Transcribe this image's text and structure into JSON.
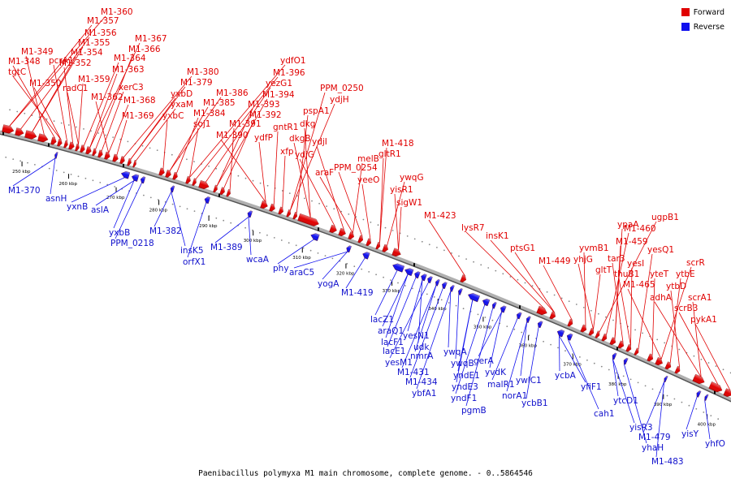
{
  "caption": "Paenibacillus polymyxa M1 main chromosome, complete genome. - 0..5864546",
  "legend": {
    "forward_label": "Forward",
    "reverse_label": "Reverse",
    "forward_color": "#e00000",
    "reverse_color": "#1010ee"
  },
  "ticks": [
    "250 kbp",
    "260 kbp",
    "270 kbp",
    "280 kbp",
    "290 kbp",
    "300 kbp",
    "310 kbp",
    "320 kbp",
    "330 kbp",
    "340 kbp",
    "350 kbp",
    "360 kbp",
    "370 kbp",
    "380 kbp",
    "390 kbp",
    "400 kbp"
  ],
  "forward_genes": [
    "M1-360",
    "M1-357",
    "M1-356",
    "M1-355",
    "M1-354",
    "M1-349",
    "M1-348",
    "tgtC",
    "M1-350",
    "pcrA1",
    "M1-352",
    "radC1",
    "M1-359",
    "M1-364",
    "M1-363",
    "M1-367",
    "M1-366",
    "xerC3",
    "M1-362",
    "M1-368",
    "M1-369",
    "M1-380",
    "M1-379",
    "yxbD",
    "yxaM",
    "yxbC",
    "M1-386",
    "M1-385",
    "M1-384",
    "soj1",
    "ydfO1",
    "M1-396",
    "yezG1",
    "M1-394",
    "M1-393",
    "M1-392",
    "M1-391",
    "M1-390",
    "ydfP",
    "gntR1",
    "xfp",
    "PPM_0250",
    "ydjH",
    "pspA1",
    "dkg",
    "dkgB",
    "ydjG",
    "ydjI",
    "araF",
    "melB",
    "PPM_0254",
    "yeeO",
    "M1-418",
    "gltR1",
    "ywqG",
    "yisR1",
    "sigW1",
    "M1-423",
    "lysR7",
    "insK1",
    "ptsG1",
    "M1-449",
    "yvmB1",
    "yhjG",
    "gltT",
    "ugpB1",
    "M1-460",
    "M1-459",
    "ypaA",
    "tar3",
    "yesI",
    "thuB1",
    "yesQ1",
    "yteT",
    "M1-465",
    "scrR",
    "ytbE",
    "ytbD",
    "adhA",
    "scrA1",
    "scrB3",
    "pykA1"
  ],
  "reverse_genes": [
    "M1-370",
    "asnH",
    "yxnB",
    "aslA",
    "yxbB",
    "PPM_0218",
    "M1-382",
    "insK5",
    "orfX1",
    "M1-389",
    "wcaA",
    "phy",
    "araC5",
    "yogA",
    "M1-419",
    "lacZ1",
    "araQ1",
    "lacF1",
    "lacE1",
    "yesN1",
    "udk",
    "yesM1",
    "nmrA",
    "M1-431",
    "M1-434",
    "ybfA1",
    "ywqA",
    "ywqB",
    "yndE1",
    "yndE3",
    "yndF1",
    "pgmB",
    "gerA",
    "yvdK",
    "malR1",
    "norA1",
    "ywlC1",
    "ycbB1",
    "ycbA",
    "yfiF1",
    "cah1",
    "ytcD1",
    "yisR3",
    "yhaH",
    "M1-479",
    "M1-483",
    "yisY",
    "yhfO"
  ]
}
